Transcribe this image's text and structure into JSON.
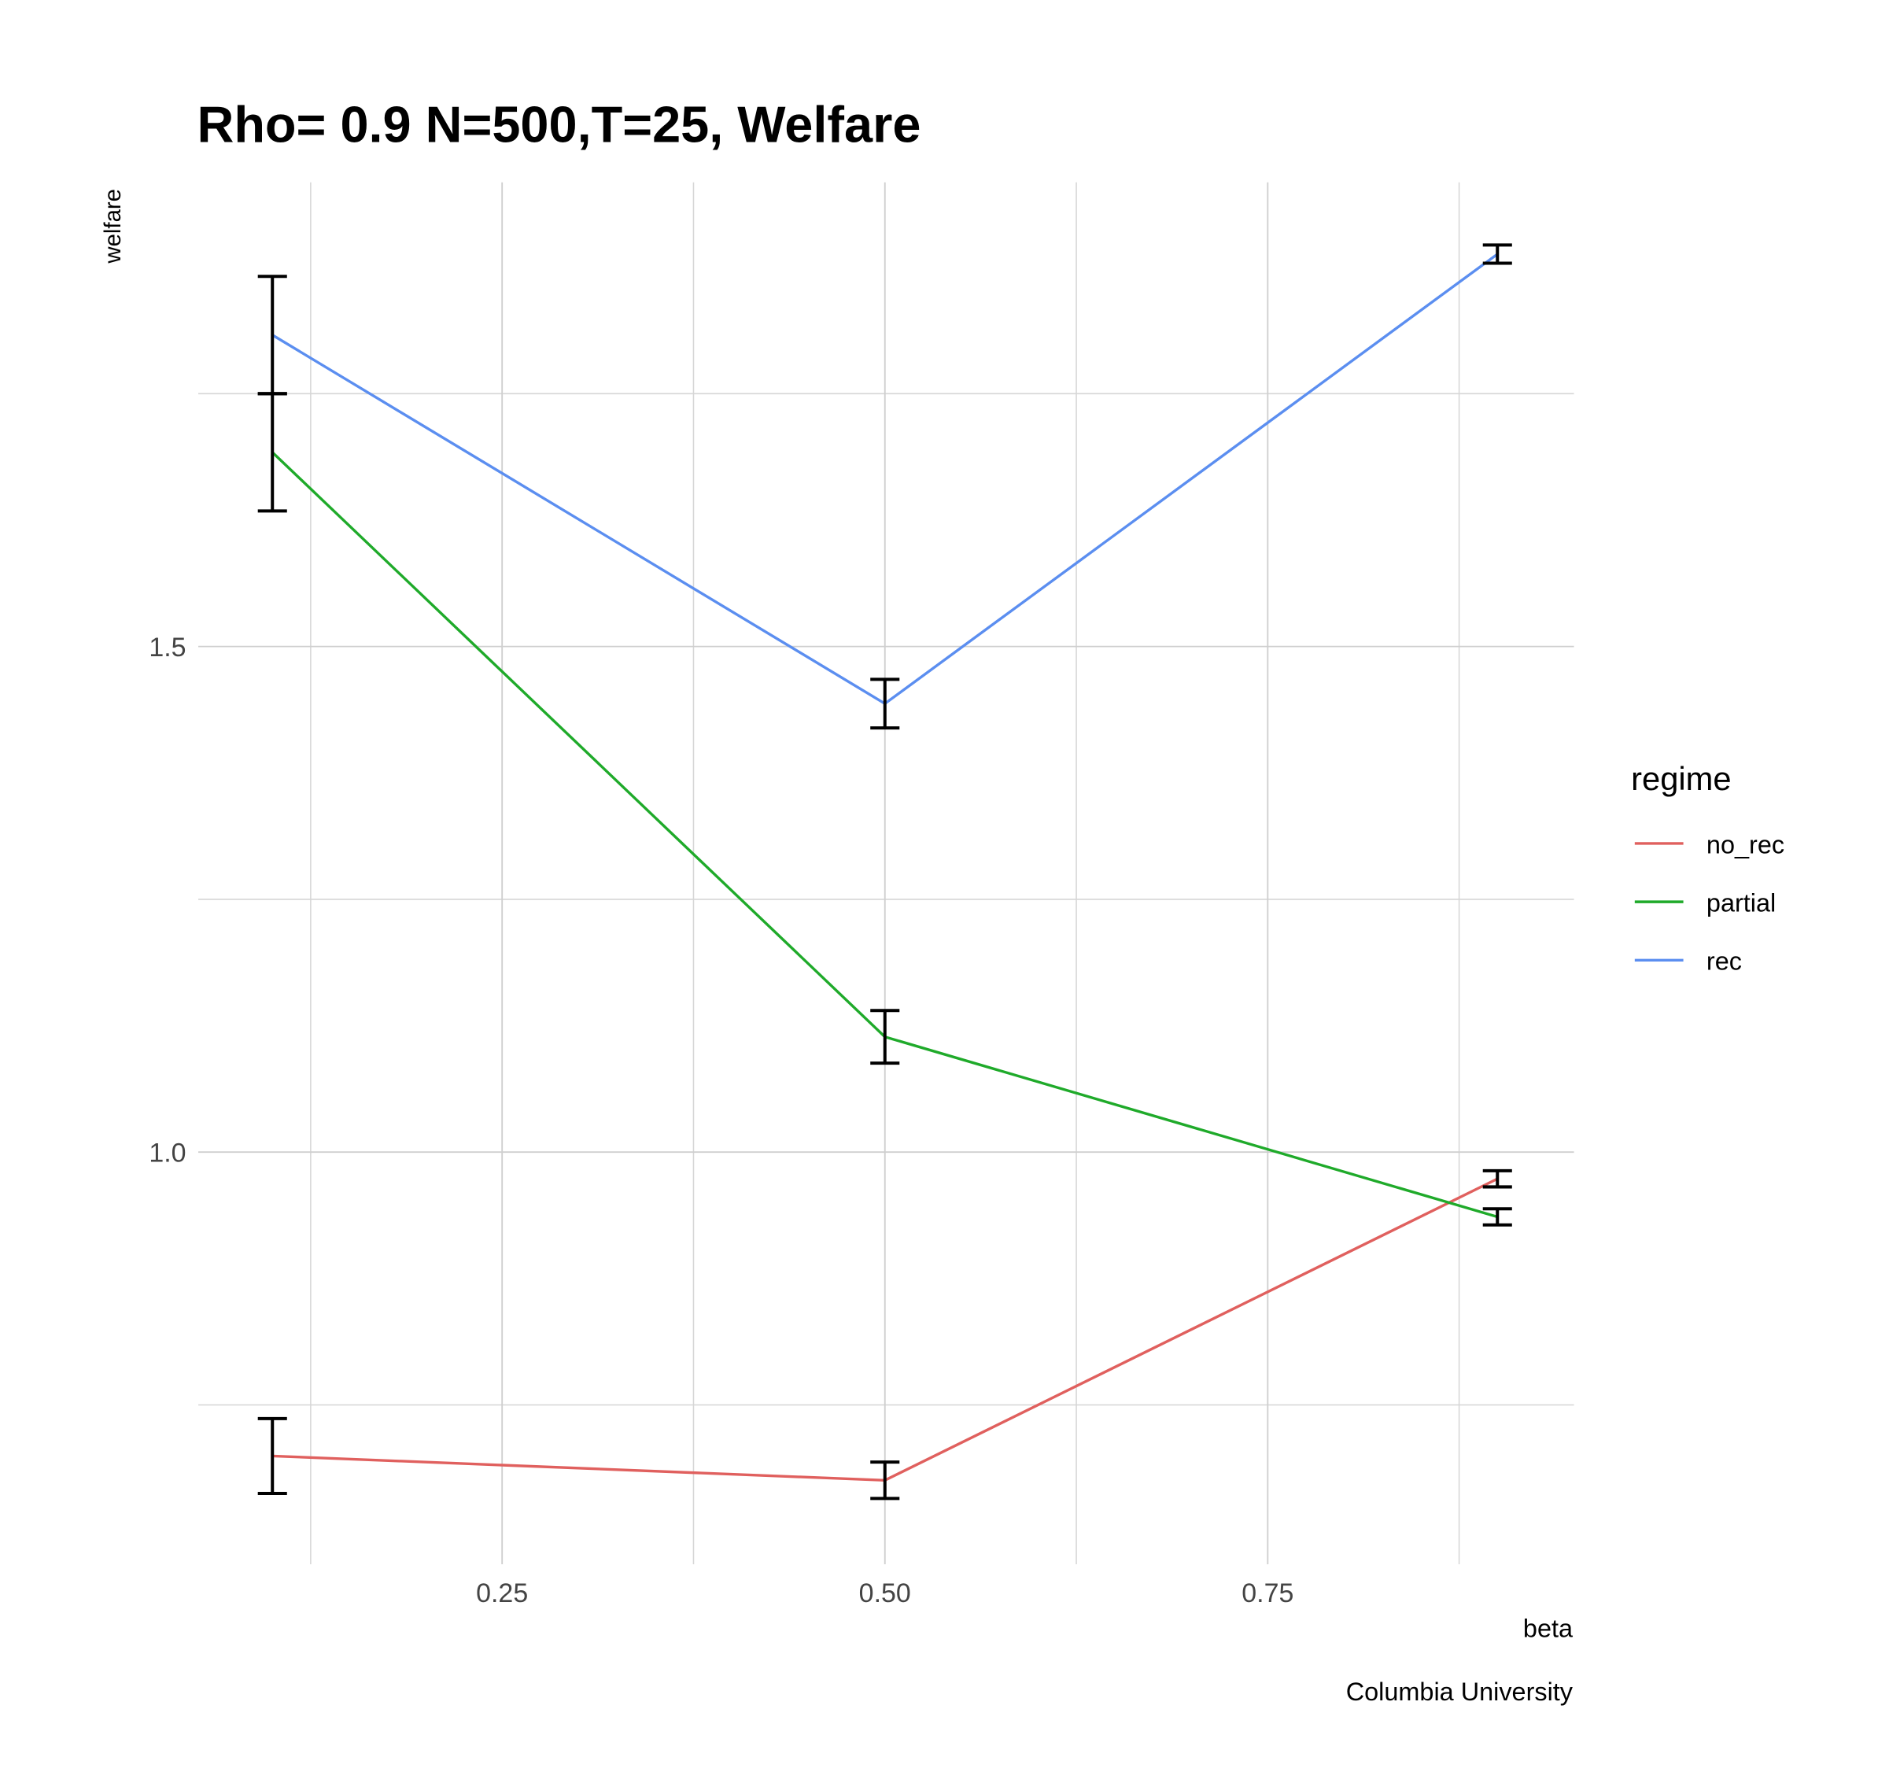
{
  "chart_data": {
    "type": "line",
    "title": "Rho= 0.9 N=500,T=25, Welfare",
    "x_label": "beta",
    "y_label": "welfare",
    "caption": "Columbia University",
    "legend_title": "regime",
    "legend_position": "right",
    "x": [
      0.1,
      0.5,
      0.9
    ],
    "series": [
      {
        "name": "no_rec",
        "color": "#e0605e",
        "values": [
          0.6995,
          0.6755,
          0.9736
        ],
        "errors": [
          0.037,
          0.018,
          0.008
        ]
      },
      {
        "name": "partial",
        "color": "#1faa2a",
        "values": [
          1.692,
          1.114,
          0.936
        ],
        "errors": [
          0.058,
          0.026,
          0.008
        ]
      },
      {
        "name": "rec",
        "color": "#5b8ef0",
        "values": [
          1.808,
          1.4435,
          1.888
        ],
        "errors": [
          0.058,
          0.024,
          0.009
        ]
      }
    ],
    "xlim": [
      0.0516,
      0.95
    ],
    "xticks": [
      0.25,
      {
        "value": 0.5,
        "label": "0.50"
      },
      0.75
    ],
    "xminor": [
      0.125,
      0.375,
      0.625,
      0.875
    ],
    "ylim": [
      0.5925,
      1.959
    ],
    "yticks": [
      {
        "value": 1,
        "label": "1.0"
      },
      1.5
    ],
    "yminor": [
      0.75,
      1.25,
      1.75
    ],
    "grid": true
  }
}
